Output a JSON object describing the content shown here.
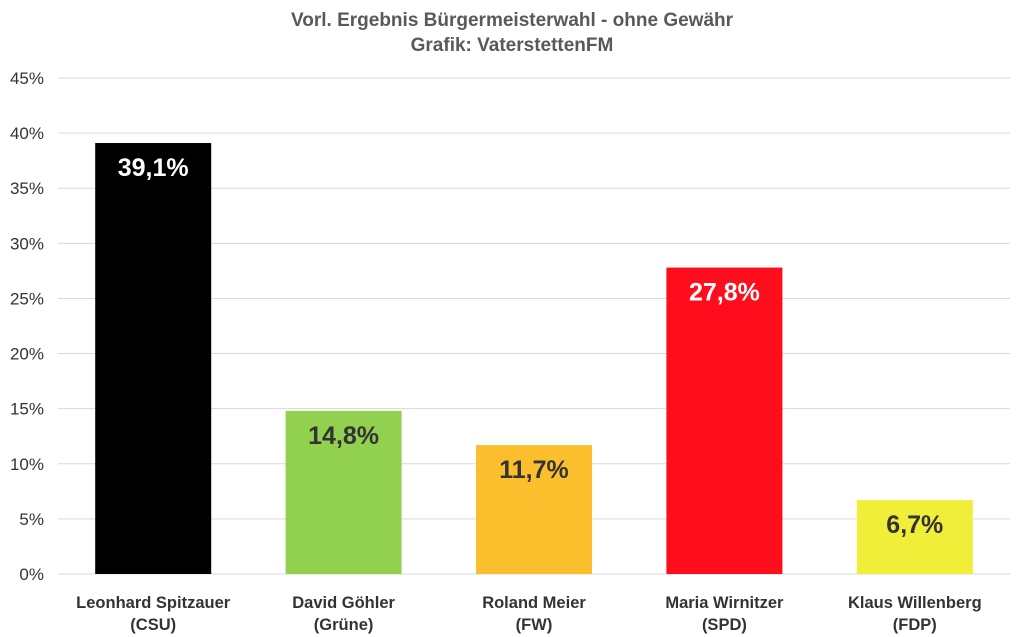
{
  "chart_data": {
    "type": "bar",
    "title": "Vorl. Ergebnis Bürgermeisterwahl - ohne Gewähr",
    "subtitle": "Grafik: VaterstettenFM",
    "ylim": [
      0,
      45
    ],
    "ytick_values": [
      0,
      5,
      10,
      15,
      20,
      25,
      30,
      35,
      40,
      45
    ],
    "ytick_labels": [
      "0%",
      "5%",
      "10%",
      "15%",
      "20%",
      "25%",
      "30%",
      "35%",
      "40%",
      "45%"
    ],
    "grid": true,
    "categories": [
      {
        "name": "Leonhard Spitzauer",
        "party": "(CSU)"
      },
      {
        "name": "David Göhler",
        "party": "(Grüne)"
      },
      {
        "name": "Roland Meier",
        "party": "(FW)"
      },
      {
        "name": "Maria Wirnitzer",
        "party": "(SPD)"
      },
      {
        "name": "Klaus Willenberg",
        "party": "(FDP)"
      }
    ],
    "values": [
      39.1,
      14.8,
      11.7,
      27.8,
      6.7
    ],
    "data_labels": [
      "39,1%",
      "14,8%",
      "11,7%",
      "27,8%",
      "6,7%"
    ],
    "colors": [
      "#000000",
      "#92d050",
      "#fbbf2e",
      "#ff0d1c",
      "#f1ee3a"
    ],
    "label_colors": [
      "#ffffff",
      "#333333",
      "#333333",
      "#ffffff",
      "#333333"
    ]
  }
}
